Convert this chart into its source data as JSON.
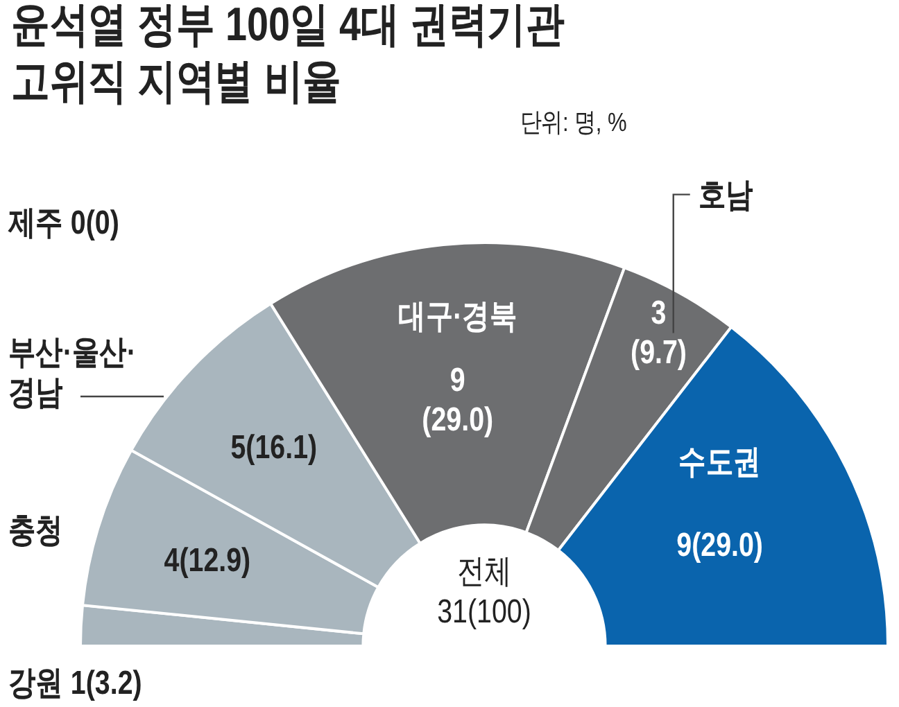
{
  "chart_data": {
    "type": "donut",
    "title": "윤석열 정부 100일 4대 권력기관\n고위직 지역별 비율",
    "subtitle": "단위: 명, %",
    "categories": [
      "제주",
      "강원",
      "충청",
      "부산·울산·\n경남",
      "대구·경북",
      "호남",
      "수도권"
    ],
    "values": [
      0,
      1,
      4,
      5,
      9,
      3,
      9
    ],
    "colors": [
      "#a9b6be",
      "#a9b6be",
      "#a9b6be",
      "#a9b6be",
      "#6d6e70",
      "#6d6e70",
      "#0a64ad"
    ],
    "value_labels": [
      "0(0)",
      "1(3.2)",
      "4(12.9)",
      "5(16.1)",
      "9\n(29.0)",
      "3\n(9.7)",
      "9(29.0)"
    ],
    "annotations": [
      "전체\n31(100)"
    ]
  }
}
